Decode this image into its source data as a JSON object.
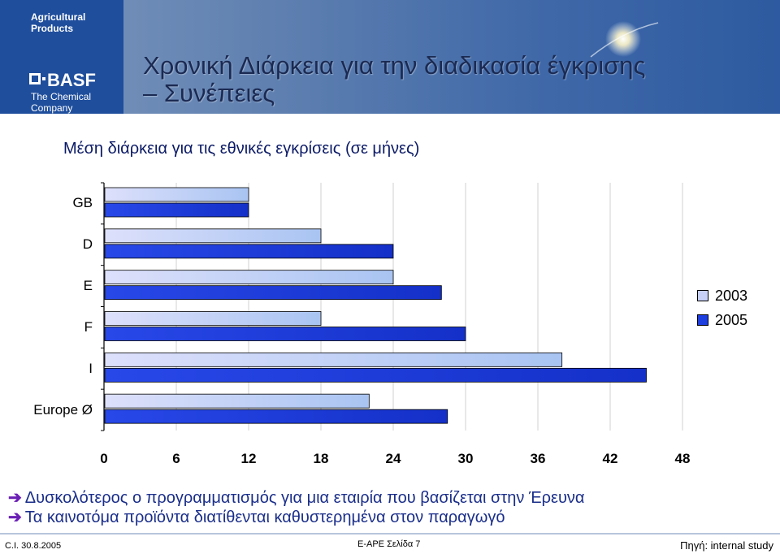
{
  "brand": {
    "top_text": "Agricultural Products",
    "name": "BASF",
    "tagline": "The Chemical Company"
  },
  "header": {
    "title_line1": "Χρονική Διάρκεια για την διαδικασία έγκρισης",
    "title_line2": "– Συνέπειες"
  },
  "subtitle": {
    "main": "Μέση διάρκεια για τις εθνικές εγκρίσεις",
    "unit": "(σε μήνες)"
  },
  "chart_data": {
    "type": "bar",
    "orientation": "horizontal",
    "categories": [
      "GB",
      "D",
      "E",
      "F",
      "I",
      "Europe Ø"
    ],
    "series": [
      {
        "name": "2003",
        "color": "#c7d0f7",
        "values": [
          12,
          18,
          24,
          18,
          38,
          22
        ]
      },
      {
        "name": "2005",
        "color": "#1e3fe0",
        "values": [
          12,
          24,
          28,
          30,
          45,
          28.5
        ]
      }
    ],
    "x_ticks": [
      "0",
      "6",
      "12",
      "18",
      "24",
      "30",
      "36",
      "42",
      "48"
    ],
    "xlim": [
      0,
      48
    ],
    "grid": "vertical",
    "legend_position": "right"
  },
  "bullets": [
    "Δυσκολότερος ο προγραμματισμός για μια εταιρία που βασίζεται στην Έρευνα",
    "Τα καινοτόμα προϊόντα διατίθενται  καθυστερημένα στον παραγωγό"
  ],
  "footer": {
    "left": "C.I. 30.8.2005",
    "center": "E-APE Σελίδα 7",
    "right": "Πηγή: internal study"
  }
}
